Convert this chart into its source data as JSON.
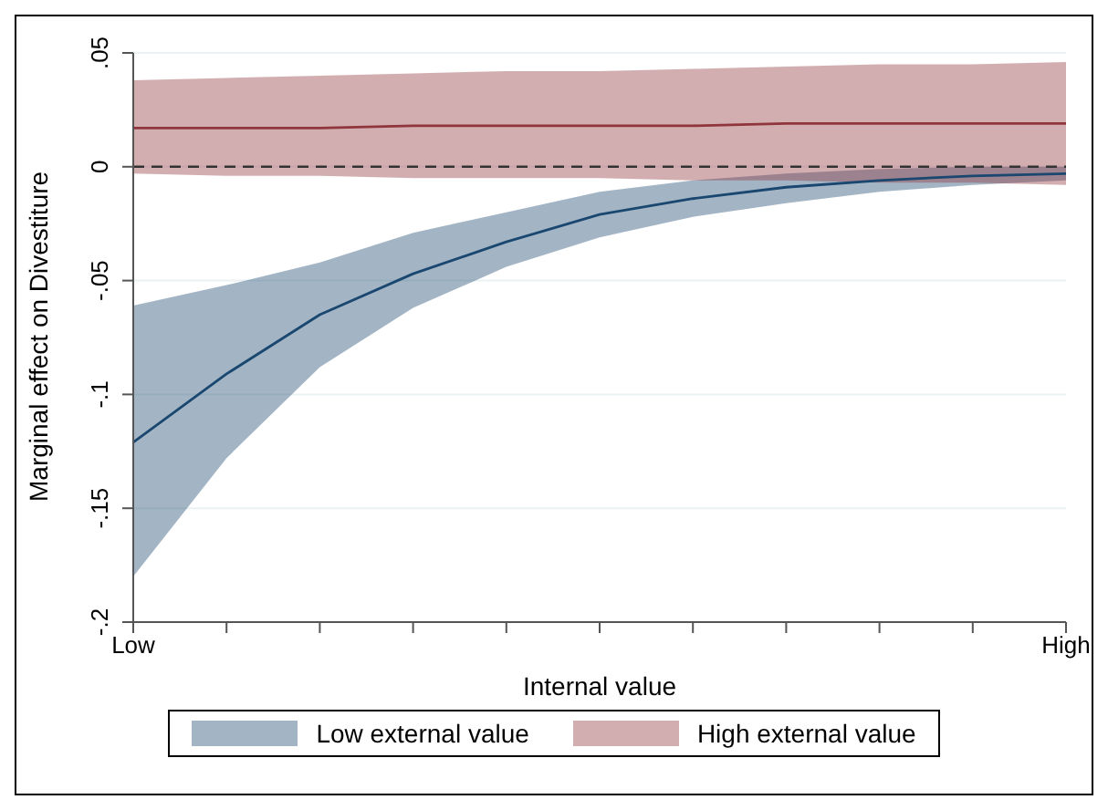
{
  "chart_data": {
    "type": "line",
    "xlabel": "Internal value",
    "ylabel": "Marginal effect on Divestiture",
    "categories": [
      "Low",
      null,
      null,
      null,
      null,
      null,
      null,
      null,
      null,
      null,
      "High"
    ],
    "ylim": [
      -0.2,
      0.05
    ],
    "yticks": [
      {
        "value": -0.2,
        "label": "-.2"
      },
      {
        "value": -0.15,
        "label": "-.15"
      },
      {
        "value": -0.1,
        "label": "-.1"
      },
      {
        "value": -0.05,
        "label": "-.05"
      },
      {
        "value": 0,
        "label": "0"
      },
      {
        "value": 0.05,
        "label": ".05"
      }
    ],
    "grid": "y",
    "legend": "bottom",
    "marker": "none",
    "ref_lines": [
      {
        "axis": "y",
        "value": 0,
        "color": "#333333",
        "line_style": "dashed"
      }
    ],
    "series": [
      {
        "name": "Low external value",
        "color": "#1a476f",
        "values": [
          -0.121,
          -0.091,
          -0.065,
          -0.047,
          -0.033,
          -0.021,
          -0.014,
          -0.009,
          -0.006,
          -0.004,
          -0.003
        ],
        "lower": [
          -0.18,
          -0.128,
          -0.088,
          -0.062,
          -0.044,
          -0.031,
          -0.022,
          -0.016,
          -0.011,
          -0.008,
          -0.006
        ],
        "upper": [
          -0.061,
          -0.052,
          -0.042,
          -0.029,
          -0.02,
          -0.011,
          -0.006,
          -0.003,
          -0.001,
          0,
          0
        ]
      },
      {
        "name": "High external value",
        "color": "#90353b",
        "values": [
          0.017,
          0.017,
          0.017,
          0.018,
          0.018,
          0.018,
          0.018,
          0.019,
          0.019,
          0.019,
          0.019
        ],
        "lower": [
          -0.003,
          -0.004,
          -0.004,
          -0.005,
          -0.005,
          -0.005,
          -0.006,
          -0.006,
          -0.007,
          -0.007,
          -0.008
        ],
        "upper": [
          0.038,
          0.039,
          0.04,
          0.041,
          0.042,
          0.042,
          0.043,
          0.044,
          0.045,
          0.045,
          0.046
        ]
      }
    ]
  }
}
